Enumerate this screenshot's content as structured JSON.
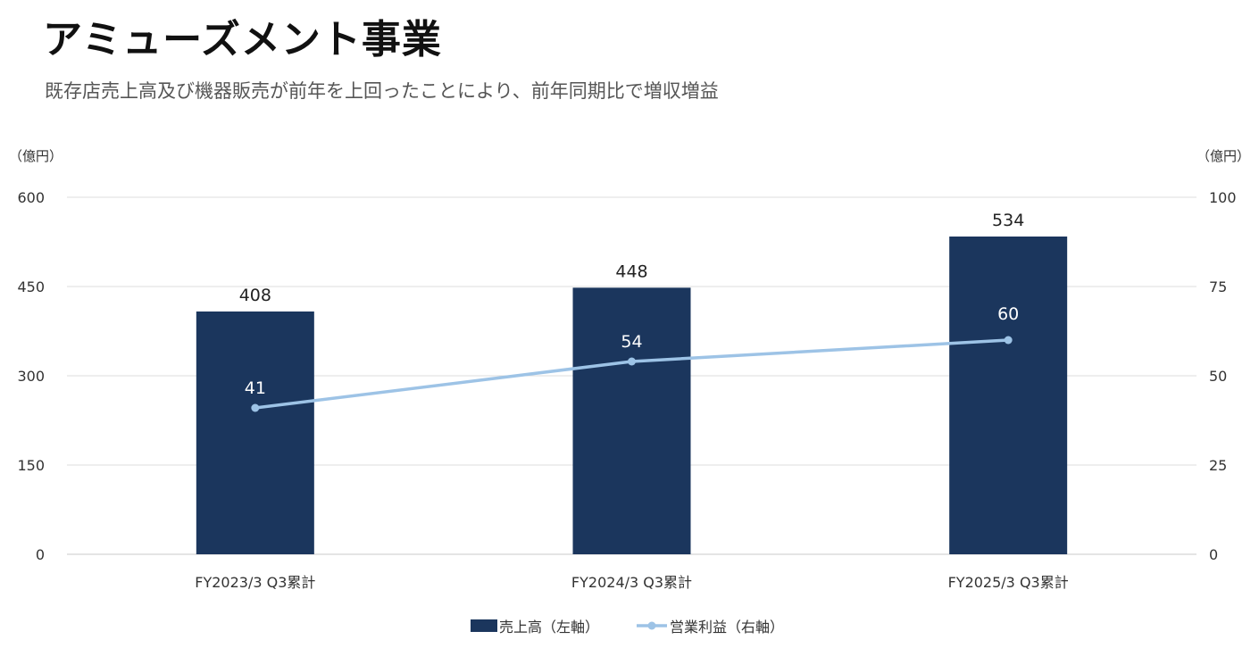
{
  "title": "アミューズメント事業",
  "subtitle": "既存店売上高及び機器販売が前年を上回ったことにより、前年同期比で増収増益",
  "chart_data": {
    "type": "bar",
    "categories": [
      "FY2023/3 Q3累計",
      "FY2024/3 Q3累計",
      "FY2025/3 Q3累計"
    ],
    "series": [
      {
        "name": "売上高（左軸）",
        "type": "bar",
        "axis": "left",
        "values": [
          408,
          448,
          534
        ],
        "color": "#1b365d"
      },
      {
        "name": "営業利益（右軸）",
        "type": "line",
        "axis": "right",
        "values": [
          41,
          54,
          60
        ],
        "color": "#9dc3e6"
      }
    ],
    "y_left": {
      "unit": "（億円）",
      "ylim": [
        0,
        600
      ],
      "ticks": [
        0,
        150,
        300,
        450,
        600
      ]
    },
    "y_right": {
      "unit": "（億円）",
      "ylim": [
        0,
        100
      ],
      "ticks": [
        0,
        25,
        50,
        75,
        100
      ]
    },
    "grid": true,
    "legend_position": "bottom"
  }
}
